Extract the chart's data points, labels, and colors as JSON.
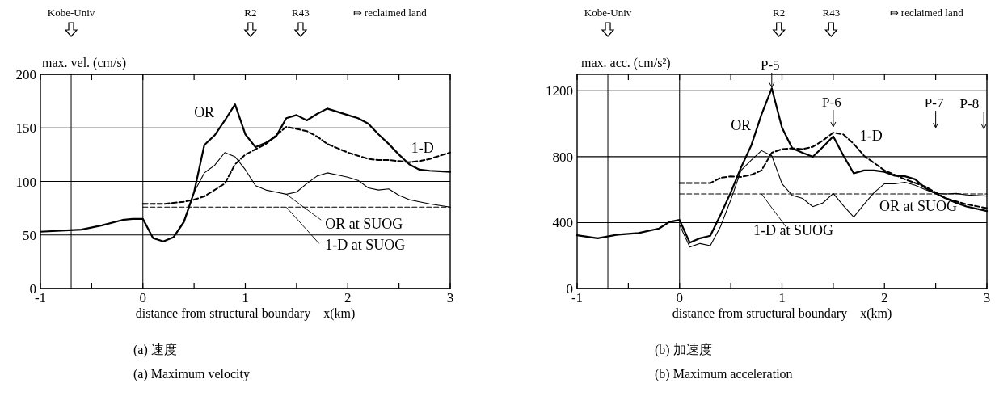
{
  "chart_data": [
    {
      "type": "line",
      "ylabel": "max. vel. (cm/s)",
      "xlabel": "distance from structural boundary    x(km)",
      "xlim": [
        -1,
        3
      ],
      "ylim": [
        0,
        200
      ],
      "xticks": [
        -1,
        {
          "value": -0.5,
          "label": null
        },
        0,
        {
          "value": 0.5,
          "label": null
        },
        1,
        {
          "value": 1.5,
          "label": null
        },
        2,
        {
          "value": 2.5,
          "label": null
        },
        3
      ],
      "yticks": [
        0,
        50,
        100,
        150,
        200
      ],
      "grid": "y",
      "legend": false,
      "marker": "none",
      "ref_lines": [
        {
          "axis": "x",
          "value": -0.7,
          "label": null
        },
        {
          "axis": "x",
          "value": 0,
          "label": null
        }
      ],
      "annotations": [
        "Kobe-Univ",
        "R2",
        "R43",
        "⤇ reclaimed land",
        "(a)  速度",
        "(a)  Maximum velocity"
      ],
      "series": [
        {
          "name": "OR",
          "color": "#000000",
          "line_style": "solid",
          "x": [
            -1,
            -0.6,
            -0.4,
            -0.2,
            -0.1,
            0,
            0.1,
            0.2,
            0.3,
            0.4,
            0.5,
            0.6,
            0.7,
            0.8,
            0.9,
            1.0,
            1.1,
            1.2,
            1.3,
            1.4,
            1.5,
            1.6,
            1.7,
            1.8,
            1.9,
            2.0,
            2.1,
            2.2,
            2.3,
            2.4,
            2.5,
            2.6,
            2.7,
            2.8,
            3.0
          ],
          "values": [
            53,
            55,
            59,
            64,
            65,
            65,
            47,
            44,
            48,
            62,
            90,
            134,
            143,
            157,
            172,
            144,
            132,
            136,
            142,
            159,
            162,
            157,
            163,
            168,
            165,
            162,
            159,
            154,
            144,
            135,
            125,
            116,
            111,
            110,
            109
          ]
        },
        {
          "name": "OR at SUOG",
          "color": "#000000",
          "line_style": "solid",
          "x": [
            0,
            0.1,
            0.2,
            0.3,
            0.4,
            0.5,
            0.6,
            0.7,
            0.8,
            0.9,
            1.0,
            1.1,
            1.2,
            1.3,
            1.4,
            1.5,
            1.6,
            1.7,
            1.8,
            1.9,
            2.0,
            2.1,
            2.2,
            2.3,
            2.4,
            2.5,
            2.6,
            2.7,
            2.8,
            3.0
          ],
          "values": [
            65,
            47,
            44,
            48,
            63,
            90,
            108,
            115,
            127,
            123,
            111,
            96,
            92,
            90,
            88,
            90,
            98,
            105,
            108,
            106,
            104,
            101,
            94,
            92,
            93,
            87,
            83,
            81,
            79,
            76
          ]
        },
        {
          "name": "1-D",
          "color": "#000000",
          "line_style": "dashed",
          "x": [
            0,
            0.2,
            0.4,
            0.5,
            0.6,
            0.7,
            0.8,
            0.9,
            1.0,
            1.1,
            1.2,
            1.3,
            1.4,
            1.5,
            1.6,
            1.7,
            1.8,
            1.9,
            2.0,
            2.1,
            2.2,
            2.3,
            2.4,
            2.5,
            2.6,
            2.7,
            2.8,
            3.0
          ],
          "values": [
            79,
            79,
            81,
            83,
            86,
            92,
            98,
            116,
            125,
            130,
            135,
            143,
            151,
            149,
            147,
            142,
            135,
            131,
            127,
            124,
            121,
            120,
            120,
            119,
            118,
            119,
            121,
            127
          ]
        },
        {
          "name": "1-D at SUOG",
          "color": "#000000",
          "line_style": "dashed",
          "x": [
            0,
            3
          ],
          "values": [
            76,
            76
          ]
        }
      ]
    },
    {
      "type": "line",
      "ylabel": "max. acc. (cm/s²)",
      "xlabel": "distance from structural boundary    x(km)",
      "xlim": [
        -1,
        3
      ],
      "ylim": [
        0,
        1300
      ],
      "xticks": [
        -1,
        {
          "value": -0.5,
          "label": null
        },
        0,
        {
          "value": 0.5,
          "label": null
        },
        1,
        {
          "value": 1.5,
          "label": null
        },
        2,
        {
          "value": 2.5,
          "label": null
        },
        3
      ],
      "yticks": [
        0,
        400,
        800,
        1200
      ],
      "grid": "y",
      "legend": false,
      "marker": "none",
      "ref_lines": [
        {
          "axis": "x",
          "value": -0.7,
          "label": null
        },
        {
          "axis": "x",
          "value": 0,
          "label": null
        }
      ],
      "annotations": [
        "Kobe-Univ",
        "R2",
        "R43",
        "⤇ reclaimed land",
        {
          "text": "P-5",
          "x": 0.9,
          "y": 1215
        },
        "P-6",
        "P-7",
        "P-8",
        "(b)  加速度",
        "(b)  Maximum acceleration"
      ],
      "series": [
        {
          "name": "OR",
          "color": "#000000",
          "line_style": "solid",
          "x": [
            -1,
            -0.8,
            -0.6,
            -0.4,
            -0.2,
            -0.1,
            0,
            0.1,
            0.2,
            0.3,
            0.4,
            0.5,
            0.6,
            0.7,
            0.8,
            0.9,
            1.0,
            1.1,
            1.2,
            1.3,
            1.4,
            1.5,
            1.6,
            1.7,
            1.8,
            1.9,
            2.0,
            2.1,
            2.2,
            2.3,
            2.4,
            2.5,
            2.6,
            2.7,
            2.8,
            3.0
          ],
          "values": [
            323,
            305,
            327,
            337,
            364,
            404,
            416,
            278,
            305,
            320,
            448,
            583,
            735,
            869,
            1057,
            1215,
            976,
            851,
            824,
            800,
            860,
            923,
            806,
            699,
            717,
            717,
            708,
            685,
            681,
            663,
            609,
            577,
            547,
            520,
            498,
            470
          ]
        },
        {
          "name": "OR at SUOG",
          "color": "#000000",
          "line_style": "solid",
          "x": [
            0,
            0.1,
            0.2,
            0.3,
            0.4,
            0.5,
            0.6,
            0.7,
            0.8,
            0.9,
            1.0,
            1.1,
            1.2,
            1.3,
            1.4,
            1.5,
            1.6,
            1.7,
            1.8,
            1.9,
            2.0,
            2.1,
            2.2,
            2.3,
            2.4,
            2.5,
            2.6,
            2.7,
            2.8,
            3.0
          ],
          "values": [
            386,
            252,
            273,
            260,
            377,
            538,
            717,
            779,
            837,
            806,
            636,
            565,
            547,
            497,
            520,
            577,
            502,
            434,
            511,
            583,
            636,
            636,
            645,
            627,
            600,
            577,
            574,
            577,
            568,
            561
          ]
        },
        {
          "name": "1-D",
          "color": "#000000",
          "line_style": "dashed",
          "x": [
            0,
            0.3,
            0.4,
            0.5,
            0.6,
            0.7,
            0.8,
            0.9,
            1.0,
            1.1,
            1.2,
            1.3,
            1.4,
            1.5,
            1.6,
            1.7,
            1.8,
            1.9,
            2.0,
            2.2,
            2.4,
            2.5,
            2.6,
            2.8,
            3.0
          ],
          "values": [
            640,
            640,
            672,
            681,
            677,
            690,
            717,
            824,
            846,
            851,
            846,
            860,
            899,
            946,
            935,
            878,
            806,
            762,
            717,
            663,
            618,
            583,
            547,
            511,
            488
          ]
        },
        {
          "name": "1-D at SUOG",
          "color": "#000000",
          "line_style": "dashed",
          "x": [
            0,
            3
          ],
          "values": [
            574,
            574
          ]
        }
      ]
    }
  ]
}
